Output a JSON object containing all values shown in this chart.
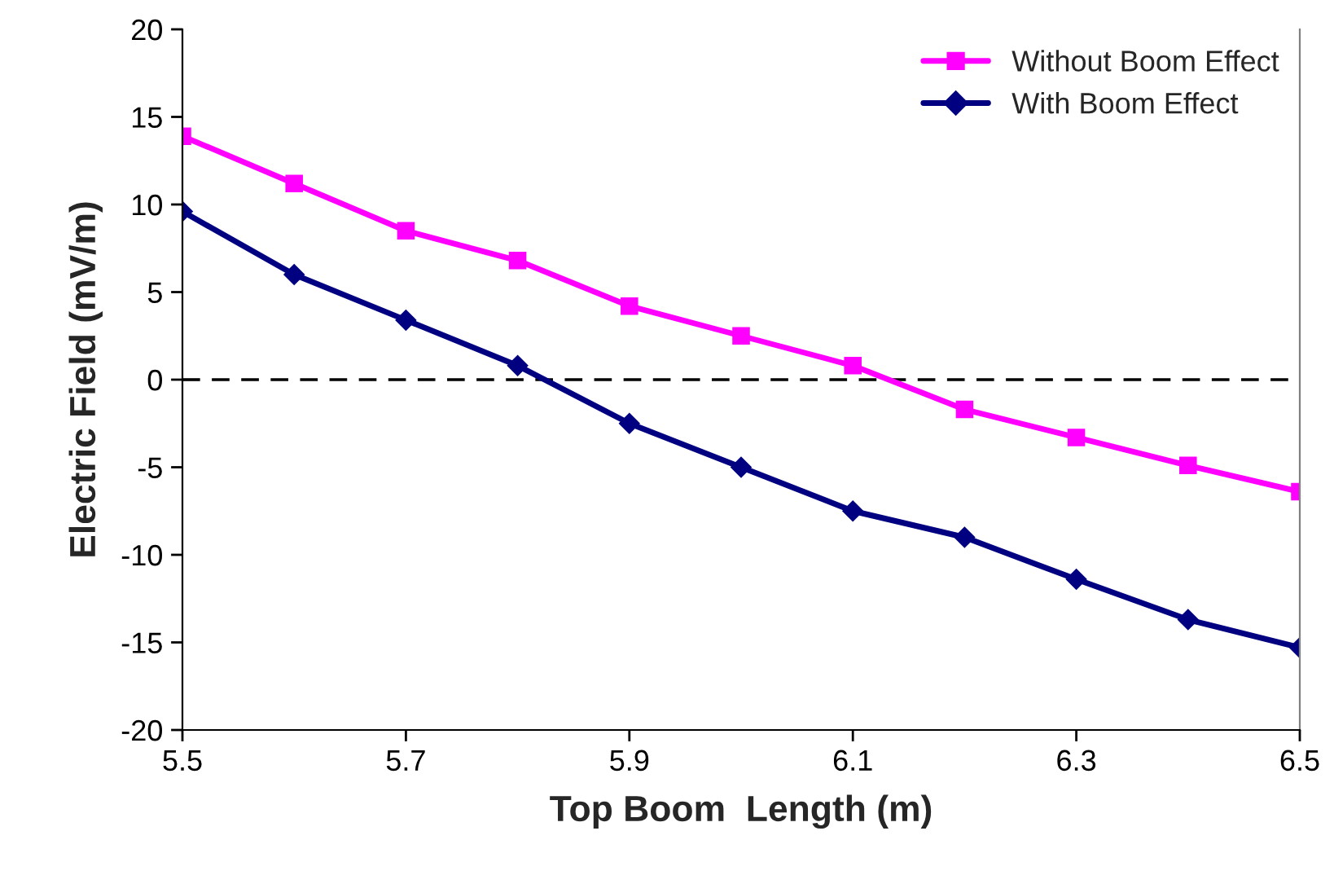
{
  "chart_data": {
    "type": "line",
    "xlabel": "Top Boom  Length (m)",
    "ylabel": "Electric Field (mV/m)",
    "x": [
      5.5,
      5.6,
      5.7,
      5.8,
      5.9,
      6.0,
      6.1,
      6.2,
      6.3,
      6.4,
      6.5
    ],
    "series": [
      {
        "name": "Without Boom Effect",
        "color": "#ff00ff",
        "marker": "square",
        "values": [
          13.9,
          11.2,
          8.5,
          6.8,
          4.2,
          2.5,
          0.8,
          -1.7,
          -3.3,
          -4.9,
          -6.4
        ]
      },
      {
        "name": "With Boom Effect",
        "color": "#000080",
        "marker": "diamond",
        "values": [
          9.6,
          6.0,
          3.4,
          0.8,
          -2.5,
          -5.0,
          -7.5,
          -9.0,
          -11.4,
          -13.7,
          -15.3
        ]
      }
    ],
    "xlim": [
      5.5,
      6.5
    ],
    "xticks": [
      5.5,
      5.7,
      5.9,
      6.1,
      6.3,
      6.5
    ],
    "ylim": [
      -20,
      20
    ],
    "yticks": [
      -20,
      -15,
      -10,
      -5,
      0,
      5,
      10,
      15,
      20
    ],
    "ref_lines": [
      {
        "axis": "y",
        "value": 0,
        "color": "#000000",
        "line_style": "dashed"
      }
    ],
    "grid": false,
    "legend": "top right"
  }
}
